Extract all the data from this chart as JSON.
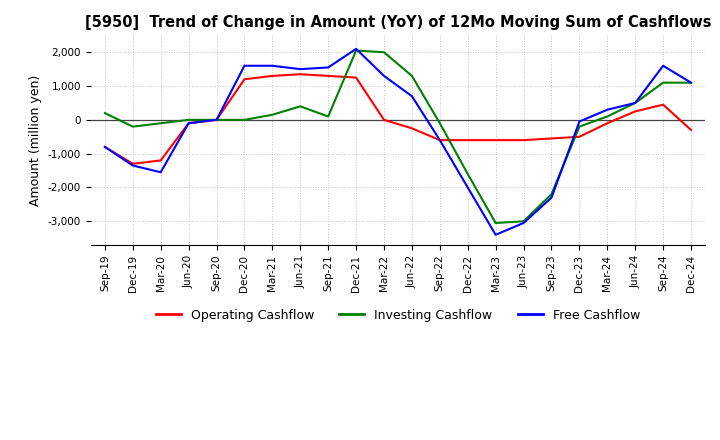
{
  "title": "[5950]  Trend of Change in Amount (YoY) of 12Mo Moving Sum of Cashflows",
  "ylabel": "Amount (million yen)",
  "legend": [
    "Operating Cashflow",
    "Investing Cashflow",
    "Free Cashflow"
  ],
  "legend_colors": [
    "#ff0000",
    "#008000",
    "#0000ff"
  ],
  "x_labels": [
    "Sep-19",
    "Dec-19",
    "Mar-20",
    "Jun-20",
    "Sep-20",
    "Dec-20",
    "Mar-21",
    "Jun-21",
    "Sep-21",
    "Dec-21",
    "Mar-22",
    "Jun-22",
    "Sep-22",
    "Dec-22",
    "Mar-23",
    "Jun-23",
    "Sep-23",
    "Dec-23",
    "Mar-24",
    "Jun-24",
    "Sep-24",
    "Dec-24"
  ],
  "operating": [
    -800,
    -1300,
    -1200,
    -100,
    0,
    1200,
    1300,
    1350,
    1300,
    1250,
    0,
    -250,
    -600,
    -600,
    -600,
    -600,
    -550,
    -500,
    -100,
    250,
    450,
    -300
  ],
  "investing": [
    200,
    -200,
    -100,
    0,
    0,
    0,
    150,
    400,
    100,
    2050,
    2000,
    1300,
    -100,
    -1600,
    -3050,
    -3000,
    -2200,
    -200,
    100,
    500,
    1100,
    1100
  ],
  "free": [
    -800,
    -1350,
    -1550,
    -100,
    0,
    1600,
    1600,
    1500,
    1550,
    2100,
    1300,
    700,
    -600,
    -2000,
    -3400,
    -3050,
    -2300,
    -50,
    300,
    500,
    1600,
    1100
  ],
  "ylim": [
    -3700,
    2500
  ],
  "yticks": [
    -3000,
    -2000,
    -1000,
    0,
    1000,
    2000
  ],
  "background_color": "#ffffff",
  "grid_color": "#c8c8c8"
}
